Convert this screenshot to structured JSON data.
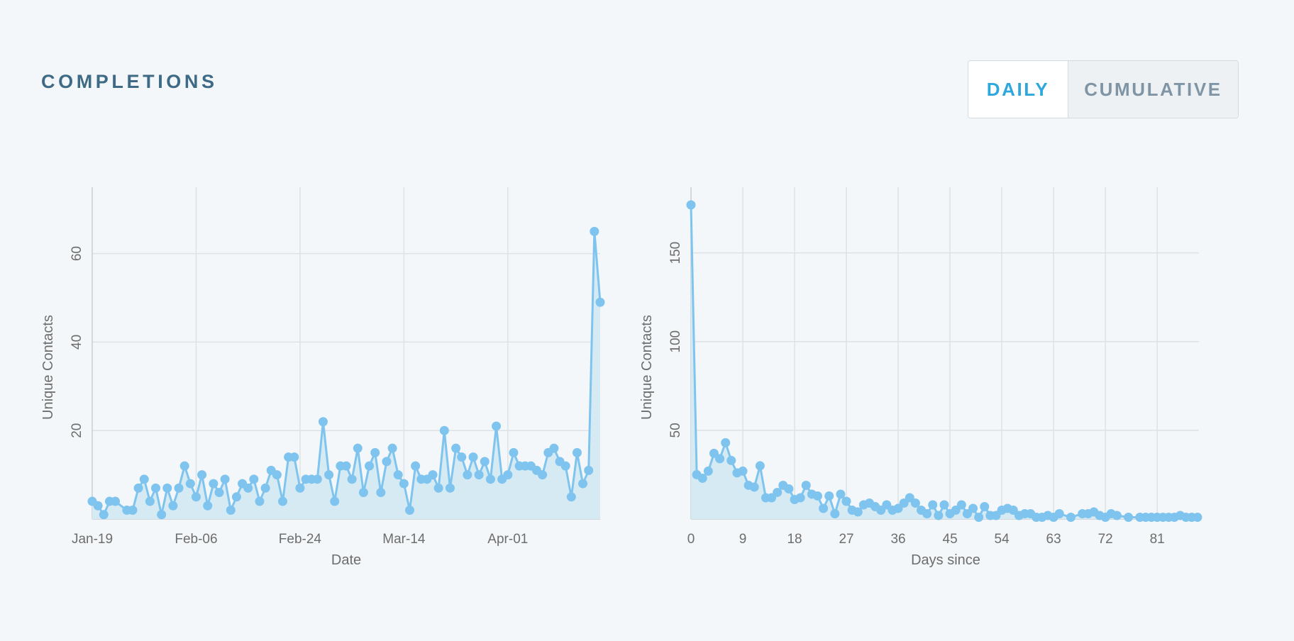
{
  "header": {
    "title": "COMPLETIONS",
    "toggle": {
      "daily_label": "DAILY",
      "cumulative_label": "CUMULATIVE",
      "selected": "daily"
    }
  },
  "colors": {
    "line": "#7fc4ee",
    "area": "#d5eaf3",
    "title": "#3e6a85",
    "active_toggle": "#2ea8dc",
    "inactive_toggle": "#7f95a6"
  },
  "chart_data": [
    {
      "type": "line",
      "area": true,
      "xlabel": "Date",
      "ylabel": "Unique Contacts",
      "x_tick_labels": [
        "Jan-19",
        "Feb-06",
        "Feb-24",
        "Mar-14",
        "Apr-01"
      ],
      "x_tick_index": [
        0,
        18,
        36,
        54,
        72
      ],
      "y_ticks": [
        20,
        40,
        60
      ],
      "ylim": [
        0,
        75
      ],
      "grid": true,
      "x_start": "Jan-19",
      "values": [
        4,
        3,
        1,
        4,
        4,
        null,
        2,
        2,
        7,
        9,
        4,
        7,
        1,
        7,
        3,
        7,
        12,
        8,
        5,
        10,
        3,
        8,
        6,
        9,
        2,
        5,
        8,
        7,
        9,
        4,
        7,
        11,
        10,
        4,
        14,
        14,
        7,
        9,
        9,
        9,
        22,
        10,
        4,
        12,
        12,
        9,
        16,
        6,
        12,
        15,
        6,
        13,
        16,
        10,
        8,
        2,
        12,
        9,
        9,
        10,
        7,
        20,
        7,
        16,
        14,
        10,
        14,
        10,
        13,
        9,
        21,
        9,
        10,
        15,
        12,
        12,
        12,
        11,
        10,
        15,
        16,
        13,
        12,
        5,
        15,
        8,
        11,
        65,
        49
      ]
    },
    {
      "type": "line",
      "area": true,
      "xlabel": "Days since",
      "ylabel": "Unique Contacts",
      "x_ticks": [
        0,
        9,
        18,
        27,
        36,
        45,
        54,
        63,
        72,
        81
      ],
      "y_ticks": [
        50,
        100,
        150
      ],
      "ylim": [
        0,
        187
      ],
      "xlim": [
        0,
        88.5
      ],
      "grid": true,
      "x": [
        0,
        1,
        2,
        3,
        4,
        5,
        6,
        7,
        8,
        9,
        10,
        11,
        12,
        13,
        14,
        15,
        16,
        17,
        18,
        19,
        20,
        21,
        22,
        23,
        24,
        25,
        26,
        27,
        28,
        29,
        30,
        31,
        32,
        33,
        34,
        35,
        36,
        37,
        38,
        39,
        40,
        41,
        42,
        43,
        44,
        45,
        46,
        47,
        48,
        49,
        50,
        51,
        52,
        53,
        54,
        55,
        56,
        57,
        58,
        59,
        60,
        61,
        62,
        63,
        64,
        66,
        68,
        69,
        70,
        71,
        72,
        73,
        74,
        76,
        78,
        79,
        80,
        81,
        82,
        83,
        84,
        85,
        86,
        87,
        88
      ],
      "values": [
        177,
        25,
        23,
        27,
        37,
        34,
        43,
        33,
        26,
        27,
        19,
        18,
        30,
        12,
        12,
        15,
        19,
        17,
        11,
        12,
        19,
        14,
        13,
        6,
        13,
        3,
        14,
        10,
        5,
        4,
        8,
        9,
        7,
        5,
        8,
        5,
        6,
        9,
        12,
        9,
        5,
        3,
        8,
        2,
        8,
        3,
        5,
        8,
        3,
        6,
        1,
        7,
        2,
        2,
        5,
        6,
        5,
        2,
        3,
        3,
        1,
        1,
        2,
        1,
        3,
        1,
        3,
        3,
        4,
        2,
        1,
        3,
        2,
        1,
        1,
        1,
        1,
        1,
        1,
        1,
        1,
        2,
        1,
        1,
        1
      ]
    }
  ]
}
